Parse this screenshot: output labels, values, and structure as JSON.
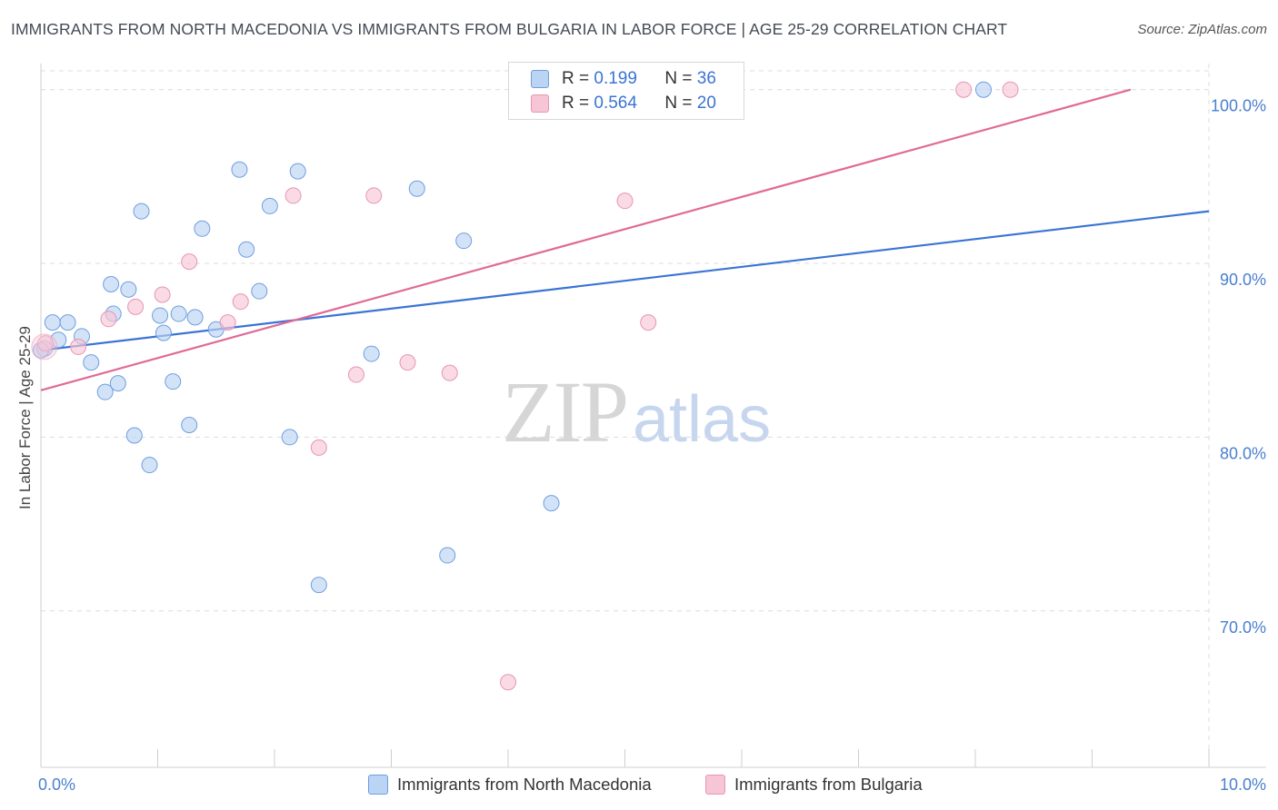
{
  "header": {
    "title": "IMMIGRANTS FROM NORTH MACEDONIA VS IMMIGRANTS FROM BULGARIA IN LABOR FORCE | AGE 25-29 CORRELATION CHART",
    "source": "Source: ZipAtlas.com"
  },
  "watermark": {
    "zip": "ZIP",
    "atlas": "atlas"
  },
  "legend": {
    "rows": [
      {
        "r_label": "R =",
        "r_value": "0.199",
        "n_label": "N =",
        "n_value": "36"
      },
      {
        "r_label": "R =",
        "r_value": "0.564",
        "n_label": "N =",
        "n_value": "20"
      }
    ]
  },
  "colors": {
    "blue_fill": "#bcd4f3",
    "blue_stroke": "#6f9ee0",
    "blue_line": "#3a74d4",
    "pink_fill": "#f7c6d6",
    "pink_stroke": "#e796b1",
    "pink_line": "#e06a96",
    "grid": "#dcdcdc",
    "axis_text": "#4a7fd0"
  },
  "chart_data": {
    "type": "scatter",
    "title": "IMMIGRANTS FROM NORTH MACEDONIA VS IMMIGRANTS FROM BULGARIA IN LABOR FORCE | AGE 25-29 CORRELATION CHART",
    "xlabel": "",
    "ylabel": "In Labor Force | Age 25-29",
    "xlim": [
      0,
      10
    ],
    "ylim": [
      61.0,
      101.5
    ],
    "x_ticks": [
      0,
      10
    ],
    "x_tick_labels": [
      "0.0%",
      "10.0%"
    ],
    "y_ticks": [
      70,
      80,
      90,
      100
    ],
    "y_tick_labels": [
      "70.0%",
      "80.0%",
      "90.0%",
      "100.0%"
    ],
    "grid": true,
    "legend_position": "top-center",
    "series": [
      {
        "name": "Immigrants from North Macedonia",
        "color": "#6f9ee0",
        "points": [
          [
            0.03,
            85.1
          ],
          [
            0.1,
            86.6
          ],
          [
            0.15,
            85.6
          ],
          [
            0.23,
            86.6
          ],
          [
            0.35,
            85.8
          ],
          [
            0.43,
            84.3
          ],
          [
            0.55,
            82.6
          ],
          [
            0.6,
            88.8
          ],
          [
            0.62,
            87.1
          ],
          [
            0.66,
            83.1
          ],
          [
            0.75,
            88.5
          ],
          [
            0.8,
            80.1
          ],
          [
            0.86,
            93.0
          ],
          [
            0.93,
            78.4
          ],
          [
            1.02,
            87.0
          ],
          [
            1.05,
            86.0
          ],
          [
            1.13,
            83.2
          ],
          [
            1.18,
            87.1
          ],
          [
            1.27,
            80.7
          ],
          [
            1.32,
            86.9
          ],
          [
            1.38,
            92.0
          ],
          [
            1.5,
            86.2
          ],
          [
            1.7,
            95.4
          ],
          [
            1.76,
            90.8
          ],
          [
            1.87,
            88.4
          ],
          [
            1.96,
            93.3
          ],
          [
            2.13,
            80.0
          ],
          [
            2.2,
            95.3
          ],
          [
            2.38,
            71.5
          ],
          [
            2.83,
            84.8
          ],
          [
            3.22,
            94.3
          ],
          [
            3.48,
            73.2
          ],
          [
            3.62,
            91.3
          ],
          [
            4.37,
            76.2
          ],
          [
            8.07,
            100.0
          ],
          [
            0.0,
            85.0
          ]
        ]
      },
      {
        "name": "Immigrants from Bulgaria",
        "color": "#e796b1",
        "points": [
          [
            0.04,
            85.4
          ],
          [
            0.32,
            85.2
          ],
          [
            0.58,
            86.8
          ],
          [
            0.81,
            87.5
          ],
          [
            1.04,
            88.2
          ],
          [
            1.27,
            90.1
          ],
          [
            1.6,
            86.6
          ],
          [
            1.71,
            87.8
          ],
          [
            2.16,
            93.9
          ],
          [
            2.38,
            79.4
          ],
          [
            2.7,
            83.6
          ],
          [
            2.85,
            93.9
          ],
          [
            3.14,
            84.3
          ],
          [
            3.5,
            83.7
          ],
          [
            4.0,
            65.9
          ],
          [
            5.0,
            93.6
          ],
          [
            5.2,
            86.6
          ],
          [
            5.6,
            100.1
          ],
          [
            7.9,
            100.0
          ],
          [
            8.3,
            100.0
          ]
        ]
      }
    ],
    "trendlines": [
      {
        "series": "Immigrants from North Macedonia",
        "x": [
          0,
          10
        ],
        "y": [
          85.0,
          93.0
        ]
      },
      {
        "series": "Immigrants from Bulgaria",
        "x": [
          0,
          9.33
        ],
        "y": [
          82.7,
          100.0
        ]
      }
    ]
  },
  "bottom_legend": [
    {
      "label": "Immigrants from North Macedonia"
    },
    {
      "label": "Immigrants from Bulgaria"
    }
  ]
}
